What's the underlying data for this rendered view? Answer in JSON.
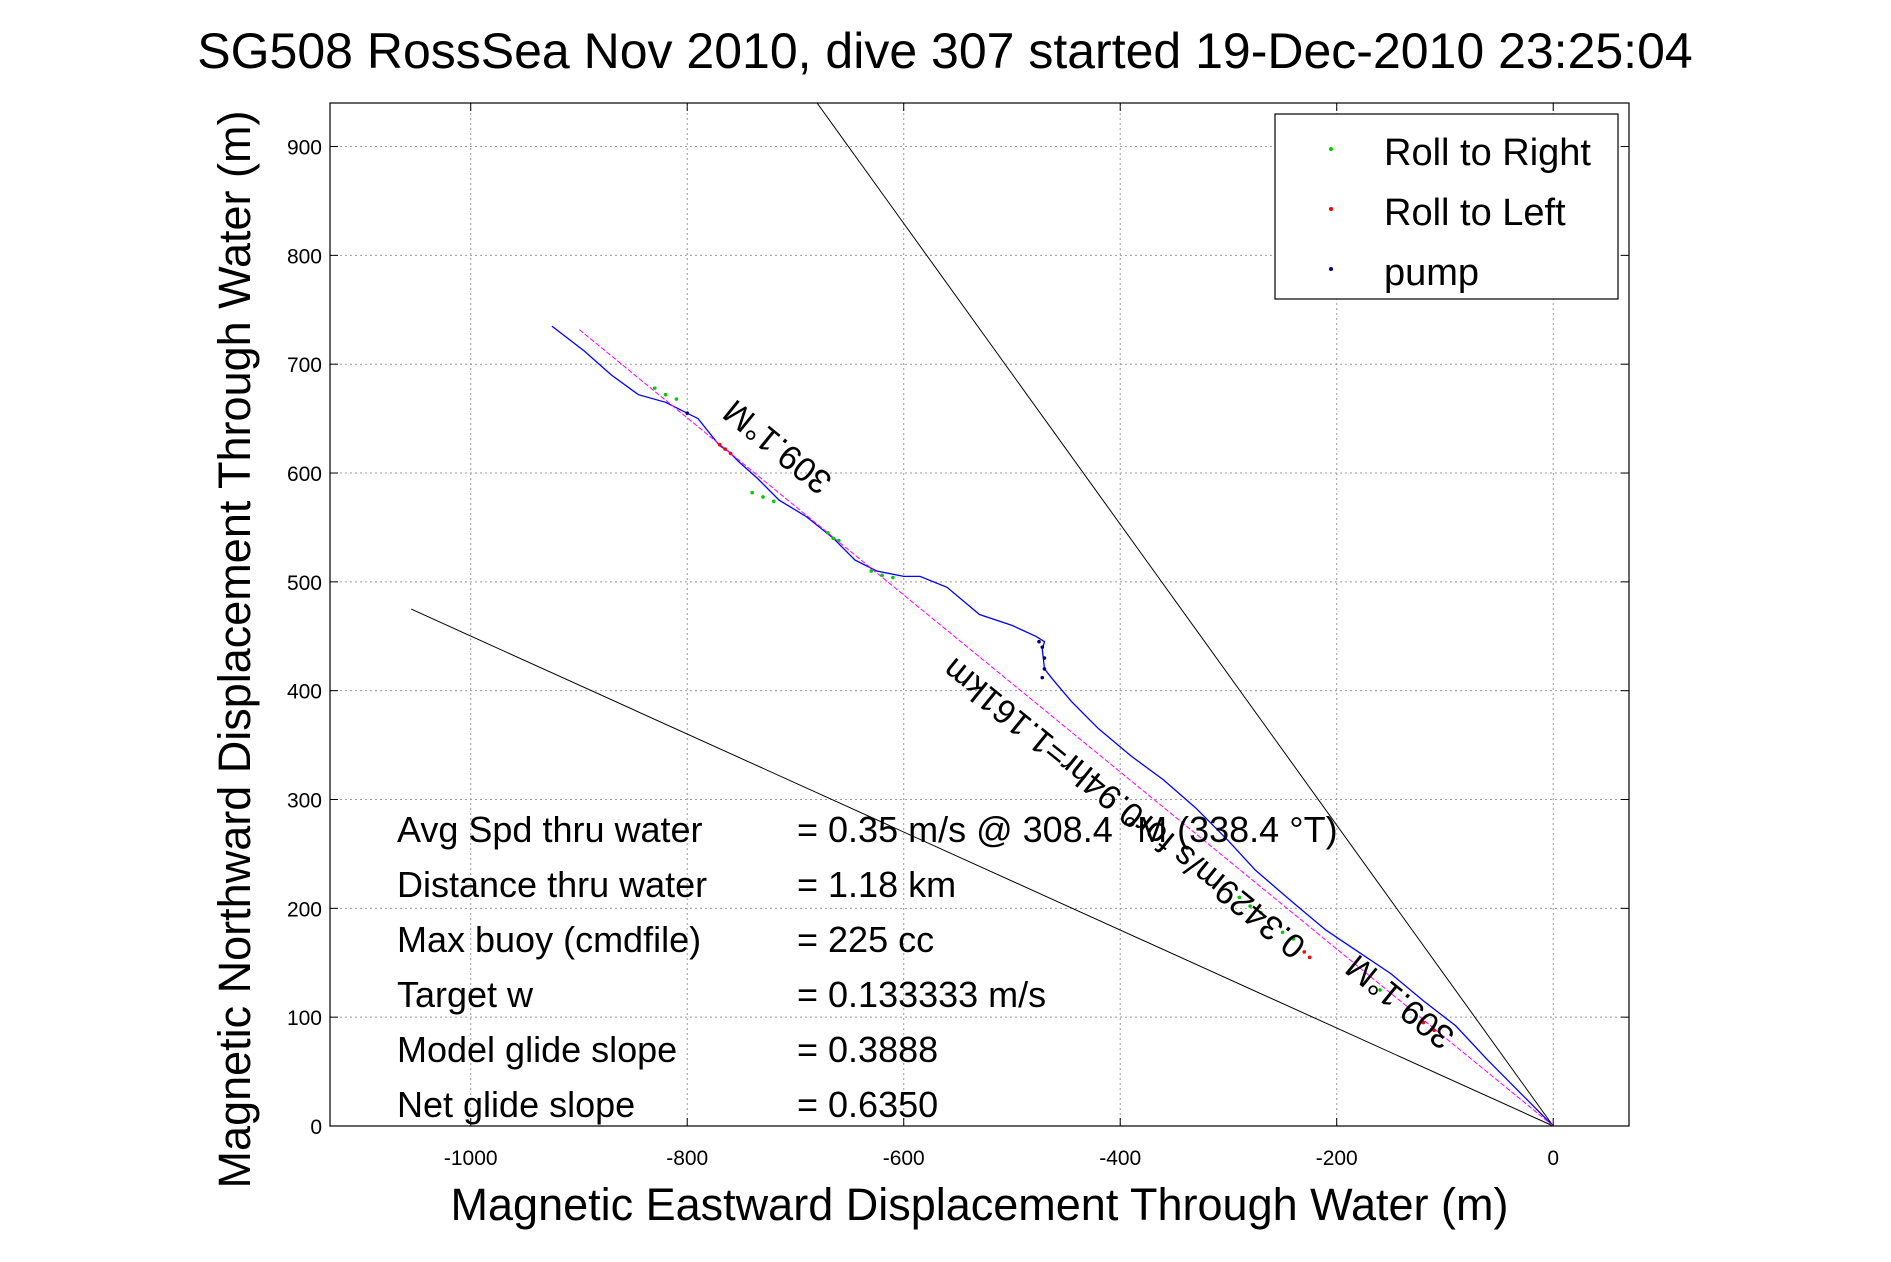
{
  "chart_data": {
    "type": "line",
    "title": "SG508 RossSea Nov 2010, dive 307 started 19-Dec-2010 23:25:04",
    "xlabel": "Magnetic Eastward Displacement Through Water (m)",
    "ylabel": "Magnetic Northward Displacement Through Water (m)",
    "xlim": [
      -1130,
      70
    ],
    "ylim": [
      0,
      940
    ],
    "xticks": [
      -1000,
      -800,
      -600,
      -400,
      -200,
      0
    ],
    "yticks": [
      0,
      100,
      200,
      300,
      400,
      500,
      600,
      700,
      800,
      900
    ],
    "grid": true,
    "legend_position": "top-right",
    "legend": [
      {
        "label": "Roll to Right",
        "color": "#00cc00"
      },
      {
        "label": "Roll to Left",
        "color": "#ff0000"
      },
      {
        "label": "pump",
        "color": "#000080"
      }
    ],
    "series": [
      {
        "name": "",
        "style": "track",
        "color": "#0000ff",
        "x": [
          0,
          -30,
          -60,
          -90,
          -120,
          -150,
          -180,
          -210,
          -240,
          -275,
          -300,
          -330,
          -360,
          -390,
          -420,
          -445,
          -462,
          -470,
          -472,
          -470,
          -478,
          -500,
          -530,
          -560,
          -585,
          -600,
          -625,
          -645,
          -665,
          -690,
          -715,
          -735,
          -752,
          -762,
          -770,
          -790,
          -820,
          -845,
          -870,
          -895,
          -925
        ],
        "y": [
          0,
          30,
          60,
          92,
          115,
          140,
          160,
          180,
          205,
          235,
          262,
          292,
          318,
          340,
          365,
          390,
          410,
          420,
          438,
          445,
          450,
          460,
          470,
          495,
          505,
          505,
          510,
          520,
          540,
          560,
          575,
          595,
          610,
          620,
          625,
          650,
          665,
          672,
          690,
          712,
          735
        ]
      },
      {
        "name": "",
        "style": "heading-line",
        "color": "#ff00ff",
        "x": [
          0,
          -900
        ],
        "y": [
          0,
          732
        ]
      },
      {
        "name": "",
        "style": "guide",
        "color": "#000000",
        "x": [
          0,
          -1055
        ],
        "y": [
          0,
          475
        ]
      },
      {
        "name": "",
        "style": "guide",
        "color": "#000000",
        "x": [
          0,
          -680
        ],
        "y": [
          0,
          940
        ]
      },
      {
        "name": "Roll to Right",
        "style": "markers",
        "color": "#00cc00",
        "x": [
          -830,
          -820,
          -810,
          -740,
          -730,
          -720,
          -670,
          -665,
          -660,
          -630,
          -620,
          -610,
          -290,
          -280,
          -270,
          -250,
          -240,
          -160
        ],
        "y": [
          678,
          672,
          668,
          582,
          578,
          574,
          545,
          540,
          538,
          510,
          506,
          504,
          210,
          202,
          196,
          178,
          172,
          125
        ]
      },
      {
        "name": "Roll to Left",
        "style": "markers",
        "color": "#ff0000",
        "x": [
          -770,
          -765,
          -760,
          -230,
          -225,
          -120,
          -110
        ],
        "y": [
          626,
          622,
          618,
          160,
          155,
          95,
          88
        ]
      },
      {
        "name": "pump",
        "style": "markers",
        "color": "#000080",
        "x": [
          -800,
          -475,
          -472,
          -470,
          -470,
          -472
        ],
        "y": [
          655,
          445,
          440,
          430,
          420,
          412
        ]
      }
    ],
    "track_annotations": [
      {
        "text": "309.1°M",
        "x": -710,
        "y": 632,
        "angle": 219
      },
      {
        "text": "0.3429m/s for0.94hr=1.161km",
        "x": -390,
        "y": 300,
        "angle": 219
      },
      {
        "text": "309.1°M",
        "x": -135,
        "y": 122,
        "angle": 219
      }
    ],
    "stats": [
      {
        "label": "Avg Spd thru water",
        "value": "=  0.35 m/s @ 308.4 °M (338.4 °T)"
      },
      {
        "label": "Distance thru water",
        "value": "=  1.18 km"
      },
      {
        "label": "Max buoy (cmdfile)",
        "value": "= 225 cc"
      },
      {
        "label": "Target w",
        "value": "= 0.133333 m/s"
      },
      {
        "label": "Model glide slope",
        "value": "= 0.3888"
      },
      {
        "label": "Net glide slope",
        "value": "= 0.6350"
      }
    ]
  }
}
